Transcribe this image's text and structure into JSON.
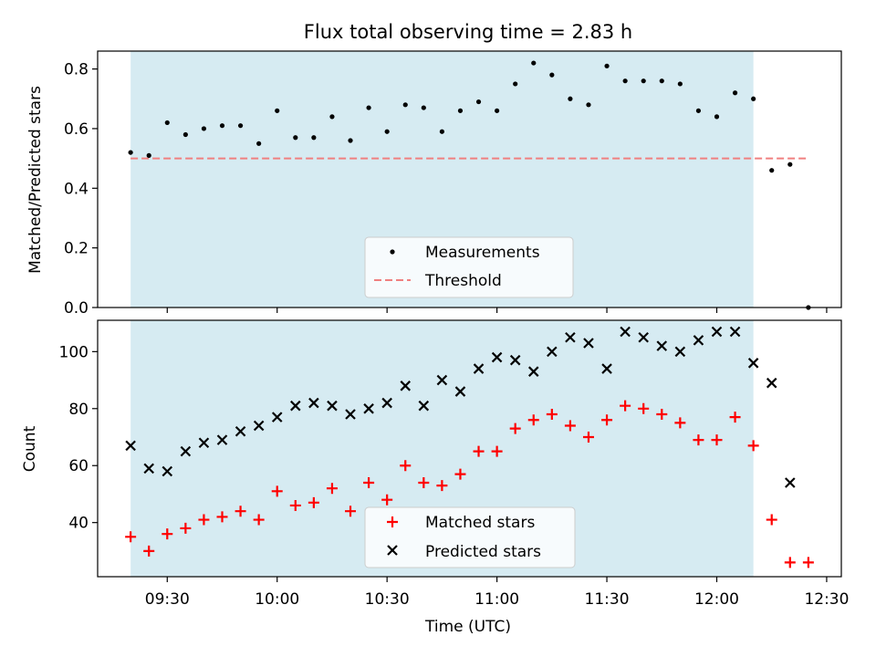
{
  "title": "Flux total observing time = 2.83 h",
  "colors": {
    "background": "#ffffff",
    "shade": "#add8e6",
    "measurement": "#000000",
    "threshold": "#f08080",
    "matched": "#ff0000",
    "predicted": "#000000"
  },
  "chart_data": [
    {
      "type": "scatter",
      "ylabel": "Matched/Predicted stars",
      "ylim": [
        0,
        0.86
      ],
      "yticks": [
        "0.0",
        "0.2",
        "0.4",
        "0.6",
        "0.8"
      ],
      "xlim": [
        "09:11",
        "12:34"
      ],
      "shaded_span": [
        "09:20",
        "12:10"
      ],
      "threshold": {
        "value": 0.5,
        "x_range": [
          "09:20",
          "12:25"
        ]
      },
      "legend": {
        "position": "lower center",
        "entries": [
          "Measurements",
          "Threshold"
        ]
      },
      "series": [
        {
          "name": "Measurements",
          "x": [
            "09:20",
            "09:25",
            "09:30",
            "09:35",
            "09:40",
            "09:45",
            "09:50",
            "09:55",
            "10:00",
            "10:05",
            "10:10",
            "10:15",
            "10:20",
            "10:25",
            "10:30",
            "10:35",
            "10:40",
            "10:45",
            "10:50",
            "10:55",
            "11:00",
            "11:05",
            "11:10",
            "11:15",
            "11:20",
            "11:25",
            "11:30",
            "11:35",
            "11:40",
            "11:45",
            "11:50",
            "11:55",
            "12:00",
            "12:05",
            "12:10",
            "12:15",
            "12:20",
            "12:25"
          ],
          "y": [
            0.52,
            0.51,
            0.62,
            0.58,
            0.6,
            0.61,
            0.61,
            0.55,
            0.66,
            0.57,
            0.57,
            0.64,
            0.56,
            0.67,
            0.59,
            0.68,
            0.67,
            0.59,
            0.66,
            0.69,
            0.66,
            0.75,
            0.82,
            0.78,
            0.7,
            0.68,
            0.81,
            0.76,
            0.76,
            0.76,
            0.75,
            0.66,
            0.64,
            0.72,
            0.7,
            0.46,
            0.48,
            0.0
          ]
        }
      ]
    },
    {
      "type": "scatter",
      "xlabel": "Time (UTC)",
      "ylabel": "Count",
      "ylim": [
        21,
        111
      ],
      "yticks": [
        "40",
        "60",
        "80",
        "100"
      ],
      "xlim": [
        "09:11",
        "12:34"
      ],
      "xticks": [
        "09:30",
        "10:00",
        "10:30",
        "11:00",
        "11:30",
        "12:00",
        "12:30"
      ],
      "shaded_span": [
        "09:20",
        "12:10"
      ],
      "legend": {
        "position": "lower center",
        "entries": [
          "Matched stars",
          "Predicted stars"
        ]
      },
      "series": [
        {
          "name": "Matched stars",
          "marker": "+",
          "x": [
            "09:20",
            "09:25",
            "09:30",
            "09:35",
            "09:40",
            "09:45",
            "09:50",
            "09:55",
            "10:00",
            "10:05",
            "10:10",
            "10:15",
            "10:20",
            "10:25",
            "10:30",
            "10:35",
            "10:40",
            "10:45",
            "10:50",
            "10:55",
            "11:00",
            "11:05",
            "11:10",
            "11:15",
            "11:20",
            "11:25",
            "11:30",
            "11:35",
            "11:40",
            "11:45",
            "11:50",
            "11:55",
            "12:00",
            "12:05",
            "12:10",
            "12:15",
            "12:20",
            "12:25"
          ],
          "y": [
            35,
            30,
            36,
            38,
            41,
            42,
            44,
            41,
            51,
            46,
            47,
            52,
            44,
            54,
            48,
            60,
            54,
            53,
            57,
            65,
            65,
            73,
            76,
            78,
            74,
            70,
            76,
            81,
            80,
            78,
            75,
            69,
            69,
            77,
            67,
            41,
            26,
            26
          ]
        },
        {
          "name": "Predicted stars",
          "marker": "x",
          "x": [
            "09:20",
            "09:25",
            "09:30",
            "09:35",
            "09:40",
            "09:45",
            "09:50",
            "09:55",
            "10:00",
            "10:05",
            "10:10",
            "10:15",
            "10:20",
            "10:25",
            "10:30",
            "10:35",
            "10:40",
            "10:45",
            "10:50",
            "10:55",
            "11:00",
            "11:05",
            "11:10",
            "11:15",
            "11:20",
            "11:25",
            "11:30",
            "11:35",
            "11:40",
            "11:45",
            "11:50",
            "11:55",
            "12:00",
            "12:05",
            "12:10",
            "12:15",
            "12:20"
          ],
          "y": [
            67,
            59,
            58,
            65,
            68,
            69,
            72,
            74,
            77,
            81,
            82,
            81,
            78,
            80,
            82,
            88,
            81,
            90,
            86,
            94,
            98,
            97,
            93,
            100,
            105,
            103,
            94,
            107,
            105,
            102,
            100,
            104,
            107,
            107,
            96,
            89,
            54
          ]
        }
      ]
    }
  ]
}
